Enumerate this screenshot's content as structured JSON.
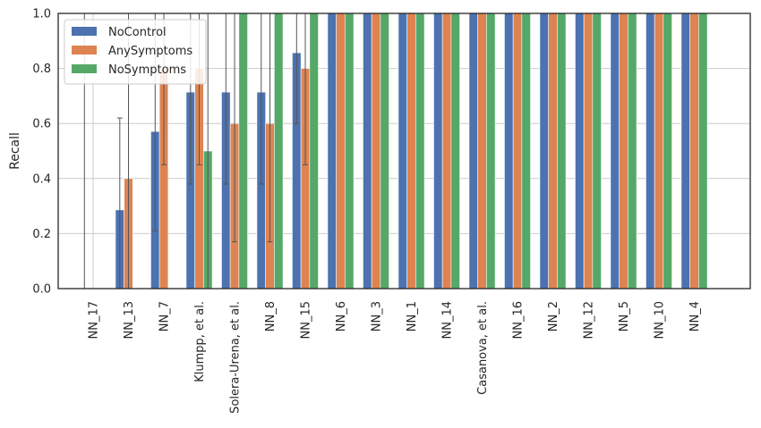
{
  "chart_data": {
    "type": "bar",
    "title": "",
    "xlabel": "",
    "ylabel": "Recall",
    "ylim": [
      0,
      1.0
    ],
    "yticks": [
      "0.0",
      "0.2",
      "0.4",
      "0.6",
      "0.8",
      "1.0"
    ],
    "grid": true,
    "legend_position": "upper-left",
    "categories": [
      "NN_17",
      "NN_13",
      "NN_7",
      "Klumpp, et al.",
      "Solera-Urena, et al.",
      "NN_8",
      "NN_15",
      "NN_6",
      "NN_3",
      "NN_1",
      "NN_14",
      "Casanova, et al.",
      "NN_16",
      "NN_2",
      "NN_12",
      "NN_5",
      "NN_10",
      "NN_4"
    ],
    "series": [
      {
        "name": "NoControl",
        "color": "#4c72b0",
        "values": [
          0.0,
          0.286,
          0.571,
          0.714,
          0.714,
          0.714,
          0.857,
          1,
          1,
          1,
          1,
          1,
          1,
          1,
          1,
          1,
          1,
          1
        ],
        "err_low": [
          null,
          0.0,
          0.21,
          0.38,
          0.38,
          0.38,
          0.6,
          null,
          null,
          null,
          null,
          null,
          null,
          null,
          null,
          null,
          null,
          null
        ],
        "err_high": [
          1.0,
          0.62,
          1.0,
          1.0,
          1.0,
          1.0,
          1.0,
          null,
          null,
          null,
          null,
          null,
          null,
          null,
          null,
          null,
          null,
          null
        ]
      },
      {
        "name": "AnySymptoms",
        "color": "#dd8452",
        "values": [
          0.0,
          0.4,
          0.8,
          0.8,
          0.6,
          0.6,
          0.8,
          1,
          1,
          1,
          1,
          1,
          1,
          1,
          1,
          1,
          1,
          1
        ],
        "err_low": [
          null,
          0.0,
          0.45,
          0.45,
          0.17,
          0.17,
          0.45,
          null,
          null,
          null,
          null,
          null,
          null,
          null,
          null,
          null,
          null,
          null
        ],
        "err_high": [
          null,
          1.0,
          1.0,
          1.0,
          1.0,
          1.0,
          1.0,
          null,
          null,
          null,
          null,
          null,
          null,
          null,
          null,
          null,
          null,
          null
        ]
      },
      {
        "name": "NoSymptoms",
        "color": "#55a868",
        "values": [
          0.0,
          0.0,
          0.0,
          0.5,
          1,
          1,
          1,
          1,
          1,
          1,
          1,
          1,
          1,
          1,
          1,
          1,
          1,
          1
        ],
        "err_low": [
          null,
          null,
          null,
          0.0,
          null,
          null,
          null,
          null,
          null,
          null,
          null,
          null,
          null,
          null,
          null,
          null,
          null,
          null
        ],
        "err_high": [
          null,
          null,
          null,
          1.0,
          null,
          null,
          null,
          null,
          null,
          null,
          null,
          null,
          null,
          null,
          null,
          null,
          null,
          null
        ]
      }
    ]
  }
}
